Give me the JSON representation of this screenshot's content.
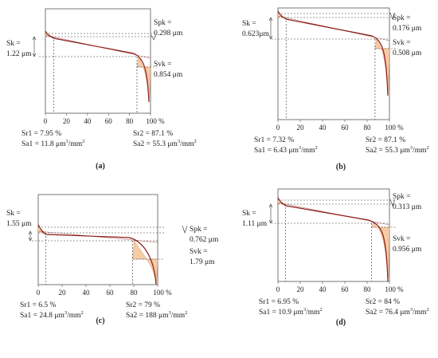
{
  "colors": {
    "curve": "#8b1a1a",
    "fill": "#f6cca6",
    "fill_stroke": "#d9956a",
    "frame": "#555555",
    "dashed": "#333333",
    "text": "#222222"
  },
  "chart_data": [
    {
      "type": "area",
      "panel_label": "(a)",
      "xlim": [
        0,
        100
      ],
      "x_ticks": [
        "0",
        "20",
        "40",
        "60",
        "80",
        "100 %"
      ],
      "sk_label": [
        "Sk =",
        "1.22 μm"
      ],
      "spk_label": [
        "Spk =",
        "0.298 μm"
      ],
      "svk_label": [
        "Svk =",
        "0.854 μm"
      ],
      "sr1_label": "Sr1 = 7.95  %",
      "sr2_label": "Sr2 = 87.1 %",
      "sa1_label": "Sa1 = 11.8 μm",
      "sa2_label": "Sa2 = 55.3 μm",
      "area_unit": "/mm",
      "superscript": "3",
      "superscript2": "2",
      "sr1": 7.95,
      "sr2": 87.1,
      "sk": 1.22,
      "spk": 0.298,
      "svk": 0.854,
      "sa1": 11.8,
      "sa2": 55.3
    },
    {
      "type": "area",
      "panel_label": "(b)",
      "xlim": [
        0,
        100
      ],
      "x_ticks": [
        "0",
        "20",
        "40",
        "60",
        "80",
        "100 %"
      ],
      "sk_label": [
        "Sk =",
        "0.623μm"
      ],
      "spk_label": [
        "Spk =",
        "0.176 μm"
      ],
      "svk_label": [
        "Svk =",
        "0.508 μm"
      ],
      "sr1_label": "Sr1 = 7.32  %",
      "sr2_label": "Sr2 = 87.1 %",
      "sa1_label": "Sa1 = 6.43 μm",
      "sa2_label": "Sa2 = 55.3 μm",
      "area_unit": "/mm",
      "superscript": "3",
      "superscript2": "2",
      "sr1": 7.32,
      "sr2": 87.1,
      "sk": 0.623,
      "spk": 0.176,
      "svk": 0.508,
      "sa1": 6.43,
      "sa2": 55.3
    },
    {
      "type": "area",
      "panel_label": "(c)",
      "xlim": [
        0,
        100
      ],
      "x_ticks": [
        "0",
        "20",
        "40",
        "60",
        "80",
        "100 %"
      ],
      "sk_label": [
        "Sk =",
        "1.55 μm"
      ],
      "spk_label": [
        "Spk =",
        "0.762 μm"
      ],
      "svk_label": [
        "Svk =",
        "1.79 μm"
      ],
      "sr1_label": "Sr1 = 6.5 %",
      "sr2_label": "Sr2 = 79  %",
      "sa1_label": "Sa1 = 24.8 μm",
      "sa2_label": "Sa2 = 188 μm",
      "area_unit": "/mm",
      "superscript": "3",
      "superscript2": "2",
      "sr1": 6.5,
      "sr2": 79,
      "sk": 1.55,
      "spk": 0.762,
      "svk": 1.79,
      "sa1": 24.8,
      "sa2": 188
    },
    {
      "type": "area",
      "panel_label": "(d)",
      "xlim": [
        0,
        100
      ],
      "x_ticks": [
        "0",
        "20",
        "40",
        "60",
        "80",
        "100 %"
      ],
      "sk_label": [
        "Sk =",
        "1.11 μm"
      ],
      "spk_label": [
        "Spk =",
        "0.313 μm"
      ],
      "svk_label": [
        "Svk =",
        "0.956 μm"
      ],
      "sr1_label": "Sr1 = 6.95 %",
      "sr2_label": "Sr2 = 84 %",
      "sa1_label": "Sa1 = 10.9 μm",
      "sa2_label": "Sa2 = 76.4 μm",
      "area_unit": "/mm",
      "superscript": "3",
      "superscript2": "2",
      "sr1": 6.95,
      "sr2": 84,
      "sk": 1.11,
      "spk": 0.313,
      "svk": 0.956,
      "sa1": 10.9,
      "sa2": 76.4
    }
  ]
}
